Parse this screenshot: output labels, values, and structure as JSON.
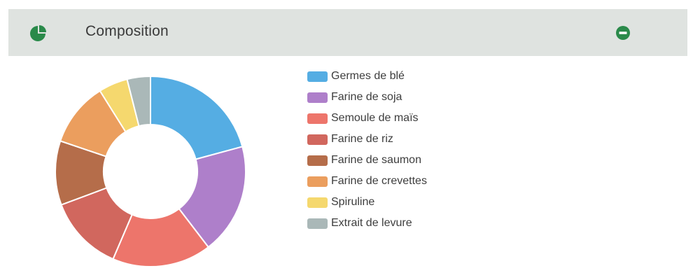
{
  "header": {
    "title": "Composition",
    "icon": "pie-chart-icon",
    "collapse_icon": "minus-circle-icon",
    "accent_color": "#2a8a4a"
  },
  "chart_data": {
    "type": "pie",
    "donut": true,
    "legend_position": "right",
    "labels": [
      "Germes de blé",
      "Farine de soja",
      "Semoule de maïs",
      "Farine de riz",
      "Farine de saumon",
      "Farine de crevettes",
      "Spiruline",
      "Extrait de levure"
    ],
    "values": [
      21,
      19,
      17,
      13,
      11,
      11,
      5,
      4
    ],
    "colors": [
      "#55ade3",
      "#ae7fca",
      "#ed756b",
      "#d1675e",
      "#b56d4a",
      "#eb9e5e",
      "#f5d86e",
      "#aab8b8"
    ]
  }
}
